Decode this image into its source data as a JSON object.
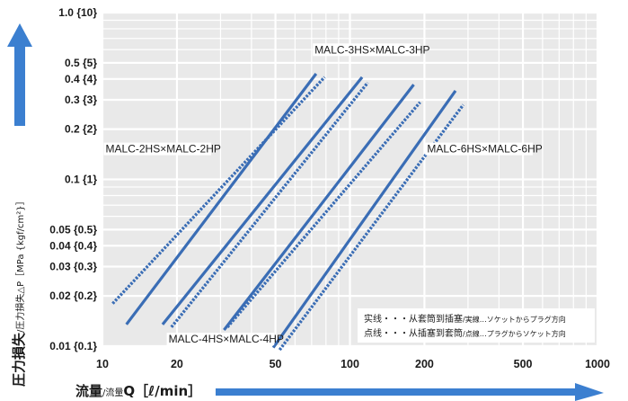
{
  "chart_data": {
    "type": "line",
    "x_scale": "log",
    "y_scale": "log",
    "xlim": [
      10,
      1000
    ],
    "ylim": [
      0.01,
      1.0
    ],
    "grid": true,
    "x_ticks": [
      {
        "v": 10,
        "label": "10"
      },
      {
        "v": 20,
        "label": "20"
      },
      {
        "v": 50,
        "label": "50"
      },
      {
        "v": 100,
        "label": "100"
      },
      {
        "v": 200,
        "label": "200"
      },
      {
        "v": 500,
        "label": "500"
      },
      {
        "v": 1000,
        "label": "1000"
      }
    ],
    "y_ticks": [
      {
        "v": 1.0,
        "label": "1.0 {10}"
      },
      {
        "v": 0.5,
        "label": "0.5 {5}"
      },
      {
        "v": 0.4,
        "label": "0.4 {4}"
      },
      {
        "v": 0.3,
        "label": "0.3 {3}"
      },
      {
        "v": 0.2,
        "label": "0.2 {2}"
      },
      {
        "v": 0.1,
        "label": "0.1 {1}"
      },
      {
        "v": 0.05,
        "label": "0.05 {0.5}"
      },
      {
        "v": 0.04,
        "label": "0.04 {0.4}"
      },
      {
        "v": 0.03,
        "label": "0.03 {0.3}"
      },
      {
        "v": 0.02,
        "label": "0.02 {0.2}"
      },
      {
        "v": 0.01,
        "label": "0.01 {0.1}"
      }
    ],
    "xlabel_main": "流量",
    "xlabel_sub": "/流量",
    "xlabel_rest": "Q［ℓ/min］",
    "ylabel_main": "圧力損失",
    "ylabel_sub": "/圧力損失",
    "ylabel_rest": "△P［MPa {kgf/cm²}］",
    "series": [
      {
        "style": "solid",
        "x": [
          12.5,
          73
        ],
        "y": [
          0.0135,
          0.43
        ]
      },
      {
        "style": "dotted",
        "x": [
          11,
          79
        ],
        "y": [
          0.018,
          0.41
        ]
      },
      {
        "style": "solid",
        "x": [
          17.5,
          112
        ],
        "y": [
          0.0135,
          0.41
        ]
      },
      {
        "style": "dotted",
        "x": [
          19,
          118
        ],
        "y": [
          0.013,
          0.38
        ]
      },
      {
        "style": "solid",
        "x": [
          31,
          181
        ],
        "y": [
          0.0125,
          0.37
        ]
      },
      {
        "style": "dotted",
        "x": [
          32,
          192
        ],
        "y": [
          0.013,
          0.29
        ]
      },
      {
        "style": "solid",
        "x": [
          49,
          267
        ],
        "y": [
          0.0098,
          0.34
        ]
      },
      {
        "style": "dotted",
        "x": [
          52,
          287
        ],
        "y": [
          0.0095,
          0.28
        ]
      }
    ],
    "annotations": [
      {
        "text": "MALC-2HS×MALC-2HP",
        "x": 10.3,
        "y": 0.145
      },
      {
        "text": "MALC-3HS×MALC-3HP",
        "x": 72,
        "y": 0.57
      },
      {
        "text": "MALC-4HS×MALC-4HP",
        "x": 18.5,
        "y": 0.0105
      },
      {
        "text": "MALC-6HS×MALC-6HP",
        "x": 205,
        "y": 0.145
      }
    ],
    "legend": [
      {
        "main": "实线・・・从套筒到插塞",
        "sub": "/実線…ソケットからプラグ方向"
      },
      {
        "main": "点线・・・从插塞到套筒",
        "sub": "/点線…プラグからソケット方向"
      }
    ],
    "series_color": "#3a6db5",
    "arrow_color": "#3b7fd0"
  }
}
